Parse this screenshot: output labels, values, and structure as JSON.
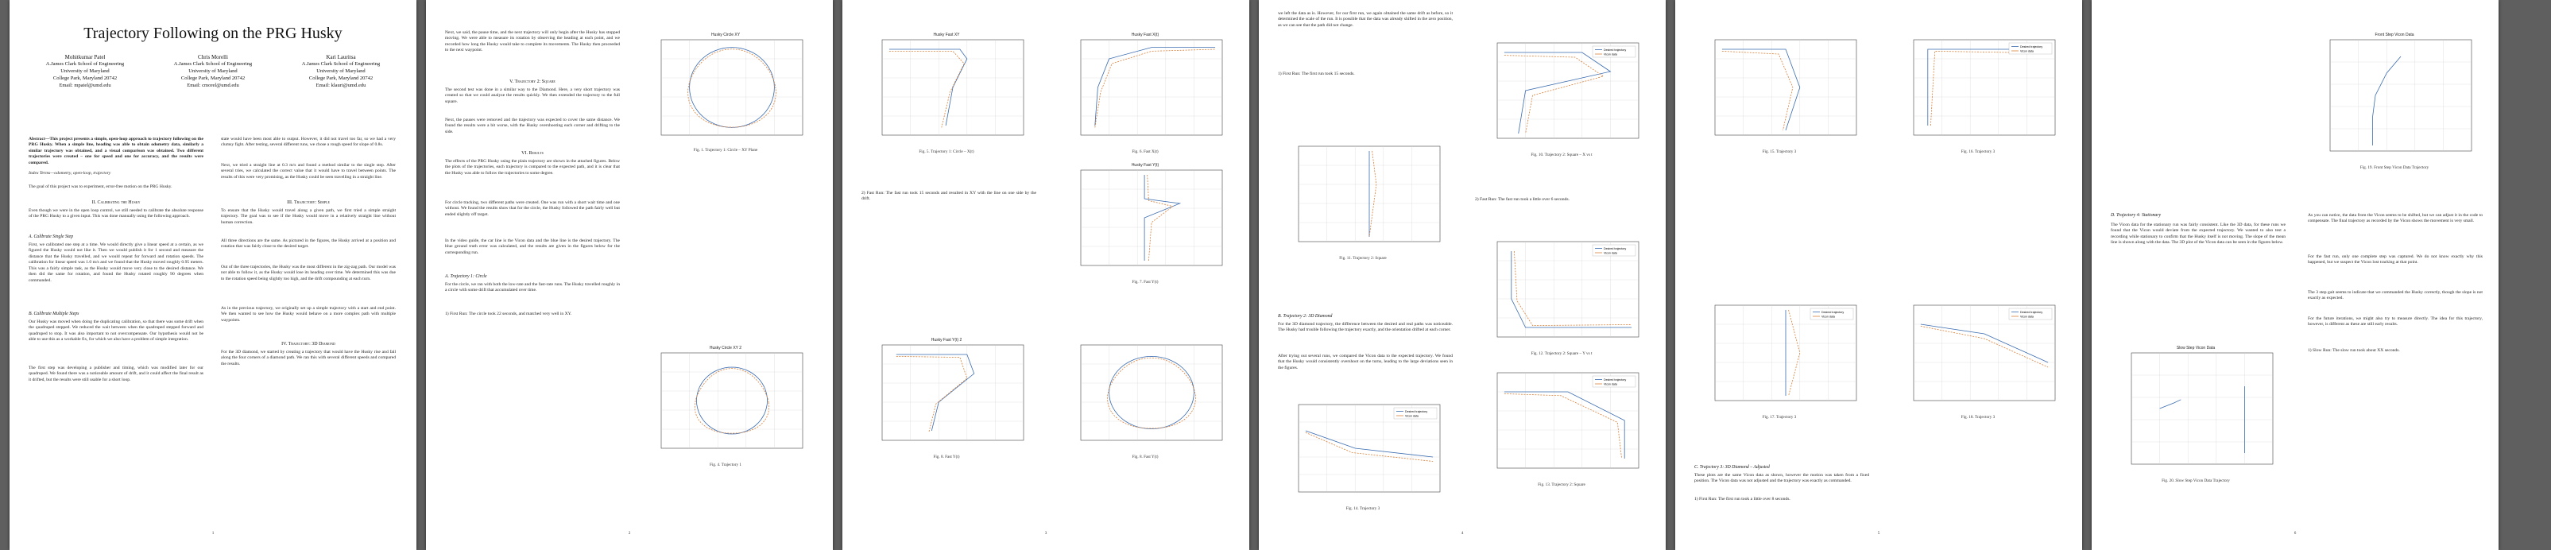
{
  "paper": {
    "title": "Trajectory Following on the PRG Husky",
    "authors": [
      {
        "name": "Mohitkumar Patel",
        "l1": "A.James Clark School of Engineering",
        "l2": "University of Maryland",
        "l3": "College Park, Maryland 20742",
        "l4": "Email: mpatel@umd.edu"
      },
      {
        "name": "Chris Morelli",
        "l1": "A.James Clark School of Engineering",
        "l2": "University of Maryland",
        "l3": "College Park, Maryland 20742",
        "l4": "Email: cmorel@umd.edu"
      },
      {
        "name": "Kari Lauritsa",
        "l1": "A.James Clark School of Engineering",
        "l2": "University of Maryland",
        "l3": "College Park, Maryland 20742",
        "l4": "Email: klauri@umd.edu"
      }
    ],
    "p1": {
      "abstract": "Abstract—This project presents a simple, open-loop approach to trajectory following on the PRG Husky. When a simple line, heading was able to obtain odometry data, similarly a similar trajectory was obtained, and a visual comparison was obtained. Two different trajectories were created – one for speed and one for accuracy, and the results were compared.",
      "index_terms": "Index Terms—odometry, open-loop, trajectory",
      "intro": "The goal of this project was to experiment, error-free motion on the PRG Husky.",
      "sec2": "II. Calibrating the Husky",
      "sec2_body": "Even though we were in the open loop control, we still needed to calibrate the absolute response of the PRG Husky to a given input. This was done manually using the following approach.",
      "sub_a": "A. Calibrate Single Step",
      "sub_a_body": "First, we calibrated one step at a time. We would directly give a linear speed at a certain, as we figured the Husky would not like it. Then we would publish it for 1 second and measure the distance that the Husky travelled, and we would repeat for forward and rotation speeds. The calibration for linear speed was 1.0 m/s and we found that the Husky moved roughly 0.95 meters. This was a fairly simple task, as the Husky would move very close to the desired distance. We then did the same for rotation, and found the Husky rotated roughly 90 degrees when commanded.",
      "sub_b": "B. Calibrate Multiple Steps",
      "sub_b_body": "Our Husky was moved when doing the duplicating calibration, so that there was some drift when the quadruped stepped. We reduced the wait between when the quadruped stepped forward and quadruped to stop. It was also important to not overcompensate. Our hypothesis would not be able to use this as a workable fix, for which we also have a problem of simple integration.",
      "p1_last": "The first step was developing a publisher and timing, which was modified later for our quadruped. We found there was a noticeable amount of drift, and it could affect the final result as it drifted, but the results were still usable for a short loop.",
      "col2_a": "state would have been most able to output. However, it did not travel too far, so we had a very clumsy fight. After testing, several different runs, we chose a rough speed for slope of 0.8s.",
      "col2_b": "Next, we tried a straight line at 0.3 m/s and found a method similar to the single step. After several tries, we calculated the correct value that it would have to travel between points. The results of this were very promising, as the Husky could be seen travelling in a straight line.",
      "col2_sec": "III. Trajectory: Simple",
      "col2_sec_body": "To ensure that the Husky would travel along a given path, we first tried a simple straight trajectory. The goal was to see if the Husky would move in a relatively straight line without human correction.",
      "col2_c": "All three directions are the same. As pictured in the figures, the Husky arrived at a position and rotation that was fairly close to the desired target.",
      "col2_d": "Out of the three trajectories, the Husky was the most different in the zig-zag path. Our model was not able to follow it, as the Husky would lose its heading over time. We determined this was due to the rotation speed being slightly too high, and the drift compounding at each turn.",
      "col2_e": "As in the previous trajectory, we originally set up a simple trajectory with a start and end point. We then wanted to see how the Husky would behave on a more complex path with multiple waypoints.",
      "col2_sec2": "IV. Trajectory: 3D Diamond",
      "col2_sec2_body": "For the 3D diamond, we started by creating a trajectory that would have the Husky rise and fall along the four corners of a diamond path. We ran this with several different speeds and compared the results.",
      "page": "1"
    },
    "p2": {
      "col1_a": "Next, we said, the pause time, and the next trajectory will only begin after the Husky has stopped moving. We were able to measure its rotation by observing the heading at each point, and we recorded how long the Husky would take to complete its movements. The Husky then proceeded to the next waypoint.",
      "sec5": "V. Trajectory 2: Square",
      "sec5_body": "The second test was done in a similar way to the Diamond. Here, a very short trajectory was created so that we could analyze the results quickly. We then extended the trajectory to the full square.",
      "col1_b": "Next, the pauses were removed and the trajectory was expected to cover the same distance. We found the results were a bit worse, with the Husky overshooting each corner and drifting to the side.",
      "sec6": "VI. Results",
      "sec6_body": "The effects of the PRG Husky using the plain trajectory are shown in the attached figures. Below the plots of the trajectories, each trajectory is compared to the expected path, and it is clear that the Husky was able to follow the trajectories to some degree.",
      "col1_c": "For circle tracking, two different paths were created. One was run with a short wait time and one without. We found the results show that for the circle, the Husky followed the path fairly well but ended slightly off target.",
      "col1_d": "In the video guide, the car line is the Vicon data and the blue line is the desired trajectory. The blue ground truth error was calculated, and the results are given in the figures below for the corresponding run.",
      "sub_a": "A. Trajectory 1: Circle",
      "sub_a_body": "For the circle, we ran with both the low-rate and the fast-rate runs. The Husky travelled roughly in a circle with some drift that accumulated over time.",
      "col1_e": "1) First Run: The circle took 22 seconds, and matched very well in XY.",
      "fig1_cap": "Fig. 1. Trajectory 1: Circle – XY Plane",
      "fig2_cap": "Fig. 2. Trajectory 1: Circle – X vs t",
      "fig3_cap": "Fig. 3. Trajectory 1: Circle – Y vs t",
      "fig4_cap": "Fig. 4. Trajectory 1",
      "fig1_title": "Husky Circle XY",
      "fig2_title": "Husky Circle X(t)",
      "fig3_title": "Husky Circle Y(t)",
      "fig4_title": "Husky Circle XY 2",
      "page": "2"
    },
    "p3": {
      "fig5_title": "Husky Fast XY",
      "fig6_title": "Husky Fast X(t)",
      "fig7_title": "Husky Fast Y(t)",
      "fig8_title": "Husky Fast Y(t) 2",
      "fig5_cap": "Fig. 5. Trajectory 1: Circle – X(t)",
      "fig6_cap": "Fig. 6. Fast X(t)",
      "fig7_cap": "Fig. 7. Fast Y(t)",
      "fig8_cap": "Fig. 8. Fast Y(t)",
      "text": "2) Fast Run: The fast run took 15 seconds and resulted in XY with the line on one side by the drift.",
      "page": "3"
    },
    "p4": {
      "col1_a": "we left the data as is. However, for our first run, we again obtained the same drift as before, so it determined the scale of the run. It is possible that the data was already shifted in the zero position, as we can see that the path did not change.",
      "fig9_cap": "Fig. 9. Trajectory 2: Square – XY Plane",
      "fig10_cap": "Fig. 10. Trajectory 2: Square – X vs t",
      "fig11_cap": "Fig. 11. Trajectory 2: Square",
      "fig12_cap": "Fig. 12. Trajectory 2: Square – Y vs t",
      "fig13_cap": "Fig. 13. Trajectory 2: Square",
      "fig14_cap": "Fig. 14. Trajectory 3",
      "run1": "1) First Run: The first run took 15 seconds.",
      "run2": "2) Fast Run: The fast run took a little over 6 seconds.",
      "sub_b": "B. Trajectory 2: 3D Diamond",
      "sub_b_body": "For the 3D diamond trajectory, the difference between the desired and real paths was noticeable. The Husky had trouble following the trajectory exactly, and the orientation drifted at each corner.",
      "col1_b": "After trying out several runs, we compared the Vicon data to the expected trajectory. We found that the Husky would consistently overshoot on the turns, leading to the large deviations seen in the figures.",
      "sub_c": "C. Trajectory 3: 3D Diamond – Adjusted",
      "sub_c_body": "These plots are the same Vicon data as shown, however the motion was taken from a fixed position. The Vicon data was not adjusted and the trajectory was exactly as commanded.",
      "run3": "1) First Run: The first run took a little over 8 seconds.",
      "legend1": "Desired trajectory",
      "legend2": "Vicon data",
      "page": "4"
    },
    "p5": {
      "fig15_cap": "Fig. 15. Trajectory 3",
      "fig16_cap": "Fig. 16. Trajectory 3",
      "fig17_cap": "Fig. 17. Trajectory 3",
      "fig18_cap": "Fig. 18. Trajectory 3",
      "page": "5"
    },
    "p6": {
      "fig19_title": "Front Step Vicon Data",
      "fig20_title": "Slow Step Vicon Data",
      "fig19_cap": "Fig. 19. Front Step Vicon Data Trajectory",
      "fig20_cap": "Fig. 20. Slow Step Vicon Data Trajectory",
      "sub_d": "D. Trajectory 4: Stationary",
      "sub_d_body": "The Vicon data for the stationary run was fairly consistent. Like the 3D data, for these runs we found that the Vicon would deviate from the expected trajectory. We wanted to also test a recording while stationary to confirm that the Husky itself is not moving. The slope of the mean line is shown along with the data. The 3D plot of the Vicon data can be seen in the figures below.",
      "col2_a": "As you can notice, the data from the Vicon seems to be shifted, but we can adjust it in the code to compensate. The final trajectory as recorded by the Vicon shows the movement is very small.",
      "col2_b": "For the fast run, only one complete step was captured. We do not know exactly why this happened, but we suspect the Vicon lost tracking at that point.",
      "col2_c": "The 3 step gait seems to indicate that we commanded the Husky correctly, though the slope is not exactly as expected.",
      "col2_d": "For the future iterations, we might also try to measure directly. The idea for this trajectory, however, is different as these are still early results.",
      "run": "1) Slow Run: The slow run took about XX seconds.",
      "page": "6"
    }
  },
  "colors": {
    "background": "#5f5f5f",
    "page": "#ffffff",
    "desired": "#3a6bb0",
    "vicon": "#d9813a",
    "grid": "#cfcfcf"
  }
}
